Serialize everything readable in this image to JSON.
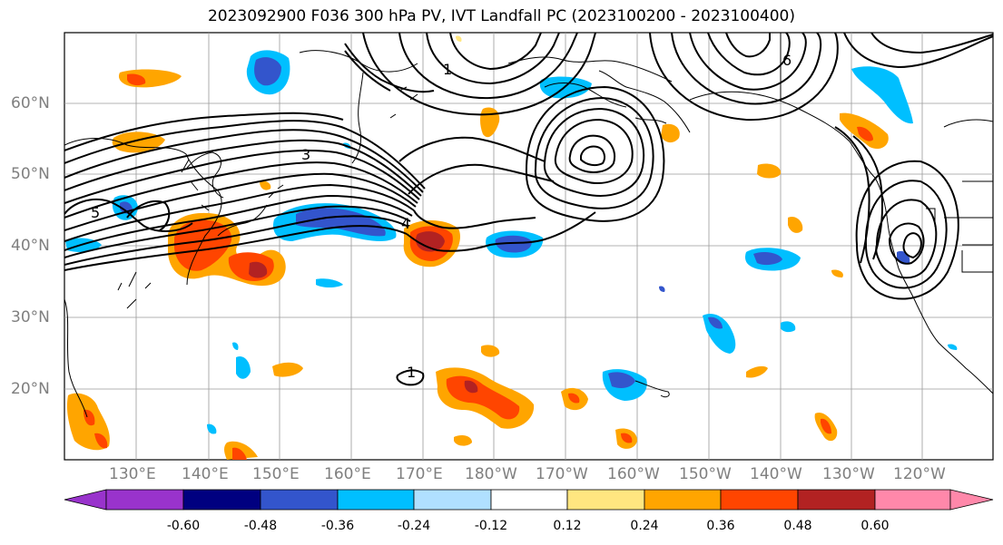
{
  "title": "2023092900 F036 300 hPa PV, IVT Landfall PC (2023100200 - 2023100400)",
  "lat_labels": [
    "60°N",
    "50°N",
    "40°N",
    "30°N",
    "20°N"
  ],
  "lon_labels": [
    "130°E",
    "140°E",
    "150°E",
    "160°E",
    "170°E",
    "180°W",
    "170°W",
    "160°W",
    "150°W",
    "140°W",
    "130°W",
    "120°W"
  ],
  "colorbar": {
    "tick_labels": [
      "-0.60",
      "-0.48",
      "-0.36",
      "-0.24",
      "-0.12",
      "0.12",
      "0.24",
      "0.36",
      "0.48",
      "0.60"
    ],
    "colors": [
      "#9933cc",
      "#000080",
      "#3355cc",
      "#00bfff",
      "#b0e0ff",
      "#ffffff",
      "#ffe680",
      "#ffa500",
      "#ff4500",
      "#b22222",
      "#ff88aa"
    ]
  },
  "contour_labels": [
    "5",
    "3",
    "1",
    "4",
    "6",
    "1"
  ]
}
